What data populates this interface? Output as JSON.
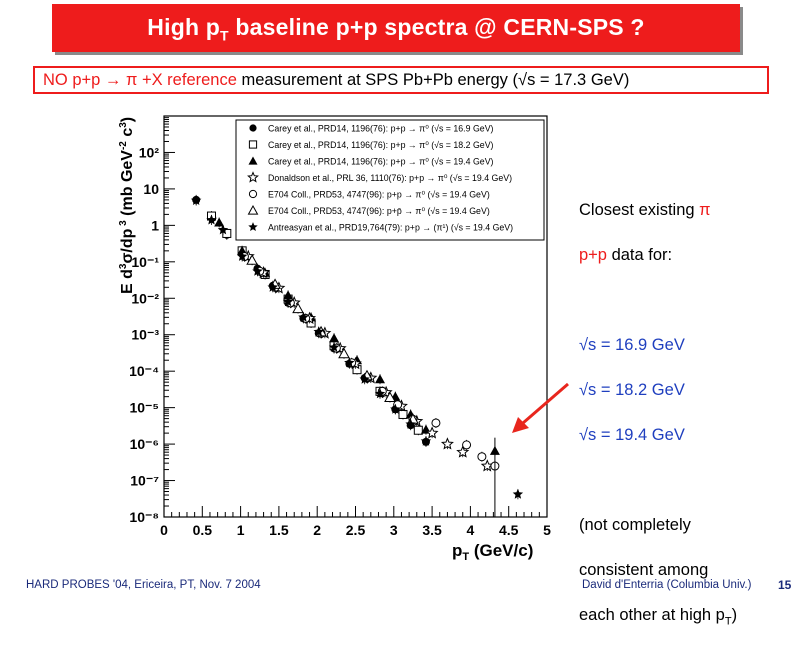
{
  "slide": {
    "title": "High p_T baseline p+p spectra @ CERN-SPS ?",
    "title_main_1": "High p",
    "title_sub": "T",
    "title_main_2": " baseline p+p spectra @ CERN-SPS ?",
    "subtitle_red": "NO p+p → π +X reference",
    "subtitle_rest": " measurement at SPS Pb+Pb energy (√s = 17.3 GeV)",
    "note_line1_a": "Closest existing ",
    "note_line1_b": "π",
    "note_line2_a": "p+p",
    "note_line2_b": " data for:",
    "note_s1": "√s = 16.9 GeV",
    "note_s2": "√s = 18.2 GeV",
    "note_s3": "√s = 19.4 GeV",
    "note_caveat_1": "(not completely",
    "note_caveat_2": " consistent among",
    "note_caveat_3": " each other at high p",
    "note_caveat_sub": "T",
    "note_caveat_end": ")",
    "footer_left": "HARD PROBES '04, Ericeira, PT, Nov. 7 2004",
    "footer_right": "David d'Enterria (Columbia Univ.)",
    "page_number": "15",
    "colors": {
      "title_bg": "#ee1c1c",
      "accent_red": "#ee1c1c",
      "blue": "#1f3fbf",
      "footer": "#1a2a7a",
      "arrow": "#e8261d"
    }
  },
  "chart_data": {
    "type": "scatter",
    "xlabel": "p_T (GeV/c)",
    "ylabel": "E d³σ/dp³ (mb GeV⁻² c³)",
    "x_tick_labels": [
      "0",
      "0.5",
      "1",
      "1.5",
      "2",
      "2.5",
      "3",
      "3.5",
      "4",
      "4.5",
      "5"
    ],
    "y_tick_labels": [
      "10⁻⁸",
      "10⁻⁷",
      "10⁻⁶",
      "10⁻⁵",
      "10⁻⁴",
      "10⁻³",
      "10⁻²",
      "10⁻¹",
      "1",
      "10",
      "10²"
    ],
    "xlim": [
      0,
      5
    ],
    "ylim": [
      1e-08,
      1000
    ],
    "yscale": "log",
    "grid": false,
    "legend_position": "top-right",
    "series": [
      {
        "name": "Carey et al., PRD14, 1196(76):  p+p → π⁰ (√s = 16.9 GeV)",
        "marker": "filled-circle",
        "points": [
          [
            0.42,
            5.0
          ],
          [
            0.63,
            1.6
          ],
          [
            0.82,
            0.55
          ],
          [
            1.02,
            0.17
          ],
          [
            1.22,
            0.065
          ],
          [
            1.42,
            0.022
          ],
          [
            1.62,
            0.0075
          ],
          [
            1.82,
            0.0028
          ],
          [
            2.02,
            0.0011
          ],
          [
            2.22,
            0.00042
          ],
          [
            2.42,
            0.00016
          ],
          [
            2.62,
            6.5e-05
          ],
          [
            2.82,
            2.5e-05
          ],
          [
            3.02,
            9e-06
          ],
          [
            3.22,
            3.3e-06
          ],
          [
            3.42,
            1.15e-06
          ]
        ]
      },
      {
        "name": "Carey et al., PRD14, 1196(76):  p+p → π⁰ (√s = 18.2 GeV)",
        "marker": "open-square",
        "points": [
          [
            0.62,
            1.8
          ],
          [
            0.82,
            0.6
          ],
          [
            1.02,
            0.2
          ],
          [
            1.32,
            0.045
          ],
          [
            1.62,
            0.0095
          ],
          [
            1.92,
            0.0021
          ],
          [
            2.22,
            0.0005
          ],
          [
            2.52,
            0.00011
          ],
          [
            2.82,
            2.8e-05
          ],
          [
            3.12,
            6.5e-06
          ],
          [
            3.32,
            2.4e-06
          ]
        ]
      },
      {
        "name": "Carey et al., PRD14, 1196(76):  p+p → π⁰ (√s = 19.4 GeV)",
        "marker": "filled-triangle",
        "points": [
          [
            0.72,
            1.2
          ],
          [
            1.02,
            0.2
          ],
          [
            1.32,
            0.05
          ],
          [
            1.62,
            0.012
          ],
          [
            1.92,
            0.003
          ],
          [
            2.22,
            0.0008
          ],
          [
            2.52,
            0.0002
          ],
          [
            2.82,
            6e-05
          ],
          [
            3.02,
            2e-05
          ],
          [
            3.22,
            6.5e-06
          ],
          [
            3.42,
            2.5e-06
          ],
          [
            4.32,
            6.5e-07
          ]
        ]
      },
      {
        "name": "Donaldson et al., PRL 36, 1110(76):  p+p → π⁰ (√s = 19.4 GeV)",
        "marker": "open-star",
        "points": [
          [
            1.1,
            0.14
          ],
          [
            1.3,
            0.05
          ],
          [
            1.5,
            0.019
          ],
          [
            1.7,
            0.0075
          ],
          [
            1.9,
            0.0028
          ],
          [
            2.1,
            0.0011
          ],
          [
            2.3,
            0.00042
          ],
          [
            2.5,
            0.00016
          ],
          [
            2.7,
            6.5e-05
          ],
          [
            2.9,
            2.6e-05
          ],
          [
            3.1,
            1.1e-05
          ],
          [
            3.3,
            4.2e-06
          ],
          [
            3.5,
            2e-06
          ],
          [
            3.7,
            1e-06
          ],
          [
            3.9,
            6e-07
          ],
          [
            4.22,
            2.5e-07
          ]
        ]
      },
      {
        "name": "E704 Coll., PRD53, 4747(96):  p+p → π⁰ (√s = 19.4 GeV)",
        "marker": "open-circle",
        "points": [
          [
            1.05,
            0.14
          ],
          [
            1.25,
            0.055
          ],
          [
            1.45,
            0.02
          ],
          [
            1.65,
            0.0075
          ],
          [
            1.85,
            0.0028
          ],
          [
            2.05,
            0.0011
          ],
          [
            2.25,
            0.00043
          ],
          [
            2.45,
            0.00017
          ],
          [
            2.65,
            6.8e-05
          ],
          [
            2.85,
            2.8e-05
          ],
          [
            3.05,
            1.2e-05
          ],
          [
            3.25,
            4.8e-06
          ],
          [
            3.55,
            3.8e-06
          ],
          [
            3.95,
            9.5e-07
          ],
          [
            4.15,
            4.5e-07
          ],
          [
            4.32,
            2.5e-07
          ]
        ]
      },
      {
        "name": "E704 Coll., PRD53, 4747(96):  p+p̄ → π⁰ (√s = 19.4 GeV)",
        "marker": "open-triangle",
        "points": [
          [
            1.15,
            0.11
          ],
          [
            1.45,
            0.024
          ],
          [
            1.75,
            0.0052
          ],
          [
            2.05,
            0.0012
          ],
          [
            2.35,
            0.0003
          ],
          [
            2.65,
            7.5e-05
          ],
          [
            2.95,
            1.9e-05
          ],
          [
            3.25,
            4.8e-06
          ]
        ]
      },
      {
        "name": "Antreasyan et al., PRD19,764(79):  p+p → (π¹) (√s = 19.4 GeV)",
        "marker": "filled-star",
        "points": [
          [
            0.42,
            4.8
          ],
          [
            0.62,
            1.4
          ],
          [
            0.77,
            0.75
          ],
          [
            1.02,
            0.14
          ],
          [
            1.22,
            0.055
          ],
          [
            1.42,
            0.02
          ],
          [
            1.62,
            0.008
          ],
          [
            1.82,
            0.003
          ],
          [
            2.02,
            0.0012
          ],
          [
            2.22,
            0.00045
          ],
          [
            2.42,
            0.00017
          ],
          [
            2.62,
            6e-05
          ],
          [
            2.82,
            2.4e-05
          ],
          [
            3.02,
            9e-06
          ],
          [
            3.22,
            3.5e-06
          ],
          [
            3.42,
            1.2e-06
          ],
          [
            4.62,
            4.2e-08
          ]
        ]
      }
    ]
  }
}
